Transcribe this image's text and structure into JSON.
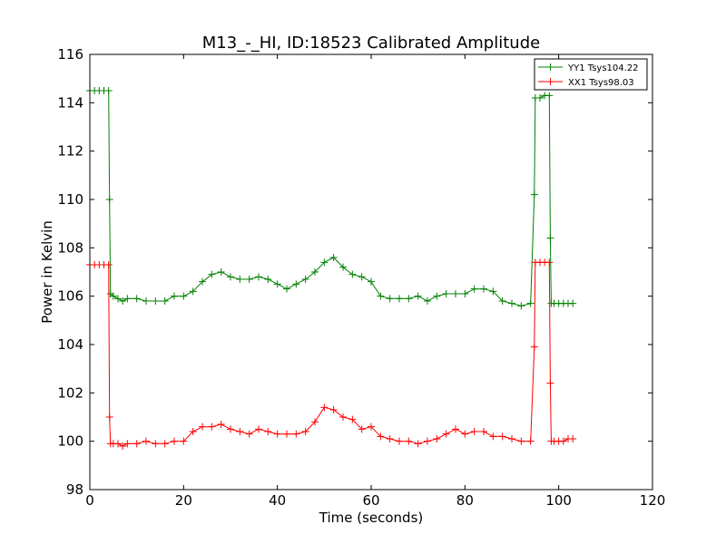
{
  "chart_data": {
    "type": "line",
    "title": "M13_-_HI, ID:18523 Calibrated Amplitude",
    "xlabel": "Time (seconds)",
    "ylabel": "Power in Kelvin",
    "xlim": [
      0,
      120
    ],
    "ylim": [
      98,
      116
    ],
    "xticks": [
      0,
      20,
      40,
      60,
      80,
      100,
      120
    ],
    "yticks": [
      98,
      100,
      102,
      104,
      106,
      108,
      110,
      112,
      114,
      116
    ],
    "grid": false,
    "legend_position": "top-right",
    "marker": "+",
    "series": [
      {
        "name": "YY1 Tsys104.22",
        "color": "#008000",
        "x": [
          0,
          1,
          2,
          3,
          4,
          4.2,
          4.4,
          5,
          6,
          7,
          8,
          10,
          12,
          14,
          16,
          18,
          20,
          22,
          24,
          26,
          28,
          30,
          32,
          34,
          36,
          38,
          40,
          42,
          44,
          46,
          48,
          50,
          52,
          54,
          56,
          58,
          60,
          62,
          64,
          66,
          68,
          70,
          72,
          74,
          76,
          78,
          80,
          82,
          84,
          86,
          88,
          90,
          92,
          94,
          94.8,
          95,
          96,
          97,
          98,
          98.2,
          98.4,
          99,
          100,
          101,
          102,
          103
        ],
        "y": [
          114.5,
          114.5,
          114.5,
          114.5,
          114.5,
          110.0,
          106.1,
          106.0,
          105.9,
          105.8,
          105.9,
          105.9,
          105.8,
          105.8,
          105.8,
          106.0,
          106.0,
          106.2,
          106.6,
          106.9,
          107.0,
          106.8,
          106.7,
          106.7,
          106.8,
          106.7,
          106.5,
          106.3,
          106.5,
          106.7,
          107.0,
          107.4,
          107.6,
          107.2,
          106.9,
          106.8,
          106.6,
          106.0,
          105.9,
          105.9,
          105.9,
          106.0,
          105.8,
          106.0,
          106.1,
          106.1,
          106.1,
          106.3,
          106.3,
          106.2,
          105.8,
          105.7,
          105.6,
          105.7,
          110.2,
          114.2,
          114.2,
          114.3,
          114.3,
          108.4,
          105.7,
          105.7,
          105.7,
          105.7,
          105.7,
          105.7
        ]
      },
      {
        "name": "XX1 Tsys98.03",
        "color": "#ff0000",
        "x": [
          0,
          1,
          2,
          3,
          4,
          4.2,
          4.4,
          5,
          6,
          7,
          8,
          10,
          12,
          14,
          16,
          18,
          20,
          22,
          24,
          26,
          28,
          30,
          32,
          34,
          36,
          38,
          40,
          42,
          44,
          46,
          48,
          50,
          52,
          54,
          56,
          58,
          60,
          62,
          64,
          66,
          68,
          70,
          72,
          74,
          76,
          78,
          80,
          82,
          84,
          86,
          88,
          90,
          92,
          94,
          94.8,
          95,
          96,
          97,
          98,
          98.2,
          98.4,
          99,
          100,
          101,
          102,
          103
        ],
        "y": [
          107.3,
          107.3,
          107.3,
          107.3,
          107.3,
          101.0,
          99.9,
          99.9,
          99.9,
          99.8,
          99.9,
          99.9,
          100.0,
          99.9,
          99.9,
          100.0,
          100.0,
          100.4,
          100.6,
          100.6,
          100.7,
          100.5,
          100.4,
          100.3,
          100.5,
          100.4,
          100.3,
          100.3,
          100.3,
          100.4,
          100.8,
          101.4,
          101.3,
          101.0,
          100.9,
          100.5,
          100.6,
          100.2,
          100.1,
          100.0,
          100.0,
          99.9,
          100.0,
          100.1,
          100.3,
          100.5,
          100.3,
          100.4,
          100.4,
          100.2,
          100.2,
          100.1,
          100.0,
          100.0,
          103.9,
          107.4,
          107.4,
          107.4,
          107.4,
          102.4,
          100.0,
          100.0,
          100.0,
          100.0,
          100.1,
          100.1
        ]
      }
    ]
  }
}
